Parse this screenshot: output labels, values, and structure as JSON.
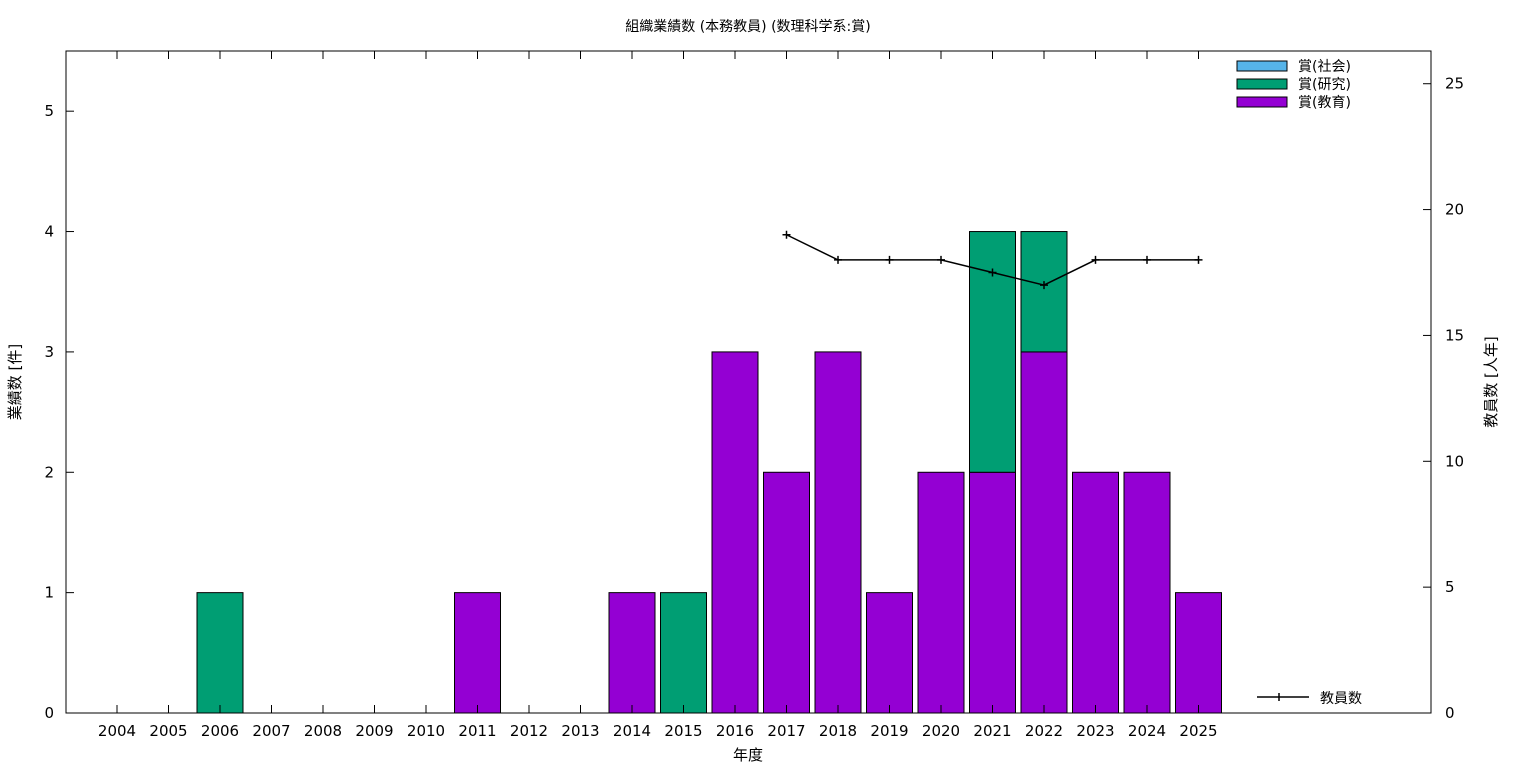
{
  "chart_data": {
    "type": "bar",
    "title": "組織業績数 (本務教員) (数理科学系:賞)",
    "xlabel": "年度",
    "ylabel": "業績数 [件]",
    "y2label": "教員数 [人年]",
    "categories": [
      "2004",
      "2005",
      "2006",
      "2007",
      "2008",
      "2009",
      "2010",
      "2011",
      "2012",
      "2013",
      "2014",
      "2015",
      "2016",
      "2017",
      "2018",
      "2019",
      "2020",
      "2021",
      "2022",
      "2023",
      "2024",
      "2025"
    ],
    "ylim": [
      0,
      5.5
    ],
    "y2lim": [
      0,
      26.3
    ],
    "yticks": [
      0,
      1,
      2,
      3,
      4,
      5
    ],
    "y2ticks": [
      0,
      5,
      10,
      15,
      20,
      25
    ],
    "stacked": true,
    "series": [
      {
        "name": "賞(教育)",
        "color": "#9400d3",
        "values": [
          0,
          0,
          0,
          0,
          0,
          0,
          0,
          1,
          0,
          0,
          1,
          0,
          3,
          2,
          3,
          1,
          2,
          2,
          3,
          2,
          2,
          1
        ]
      },
      {
        "name": "賞(研究)",
        "color": "#009e73",
        "values": [
          0,
          0,
          1,
          0,
          0,
          0,
          0,
          0,
          0,
          0,
          0,
          1,
          0,
          0,
          0,
          0,
          0,
          2,
          1,
          0,
          0,
          0
        ]
      },
      {
        "name": "賞(社会)",
        "color": "#56b4e9",
        "values": [
          0,
          0,
          0,
          0,
          0,
          0,
          0,
          0,
          0,
          0,
          0,
          0,
          0,
          0,
          0,
          0,
          0,
          0,
          0,
          0,
          0,
          0
        ]
      }
    ],
    "line_series": {
      "name": "教員数",
      "axis": "y2",
      "color": "#000000",
      "x": [
        "2017",
        "2018",
        "2019",
        "2020",
        "2021",
        "2022",
        "2023",
        "2024",
        "2025"
      ],
      "values": [
        19,
        18,
        18,
        18,
        17.5,
        17,
        18,
        18,
        18
      ]
    },
    "legend_placement": "top-right",
    "line_legend_placement": "bottom-right",
    "grid": false
  }
}
